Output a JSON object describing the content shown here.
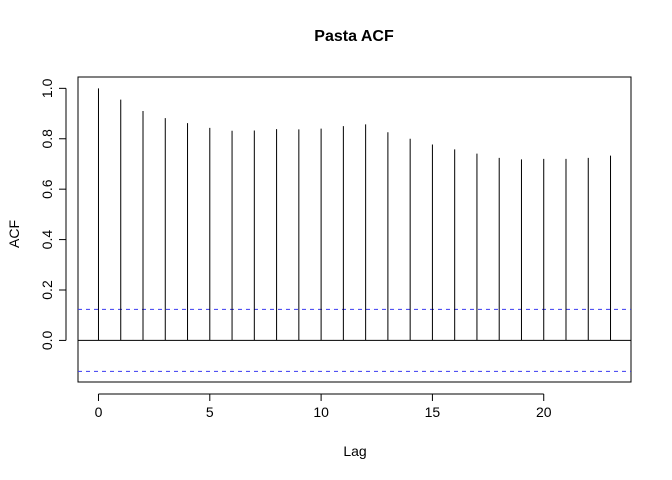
{
  "chart_data": {
    "type": "bar",
    "title": "Pasta ACF",
    "xlabel": "Lag",
    "ylabel": "ACF",
    "x": [
      0,
      1,
      2,
      3,
      4,
      5,
      6,
      7,
      8,
      9,
      10,
      11,
      12,
      13,
      14,
      15,
      16,
      17,
      18,
      19,
      20,
      21,
      22,
      23
    ],
    "values": [
      1.0,
      0.955,
      0.91,
      0.882,
      0.862,
      0.843,
      0.832,
      0.833,
      0.838,
      0.837,
      0.84,
      0.85,
      0.857,
      0.826,
      0.8,
      0.777,
      0.758,
      0.741,
      0.724,
      0.718,
      0.72,
      0.72,
      0.724,
      0.733
    ],
    "confidence_bands": [
      0.123,
      -0.123
    ],
    "xlim": [
      -0.92,
      23.92
    ],
    "ylim": [
      -0.165,
      1.045
    ],
    "x_ticks": [
      0,
      5,
      10,
      15,
      20
    ],
    "x_tick_labels": [
      "0",
      "5",
      "10",
      "15",
      "20"
    ],
    "y_ticks": [
      0.0,
      0.2,
      0.4,
      0.6,
      0.8,
      1.0
    ],
    "y_tick_labels": [
      "0.0",
      "0.2",
      "0.4",
      "0.6",
      "0.8",
      "1.0"
    ],
    "colors": {
      "bars": "#000000",
      "zero_line": "#000000",
      "confidence": "#3b3bf0",
      "frame": "#000000"
    }
  }
}
